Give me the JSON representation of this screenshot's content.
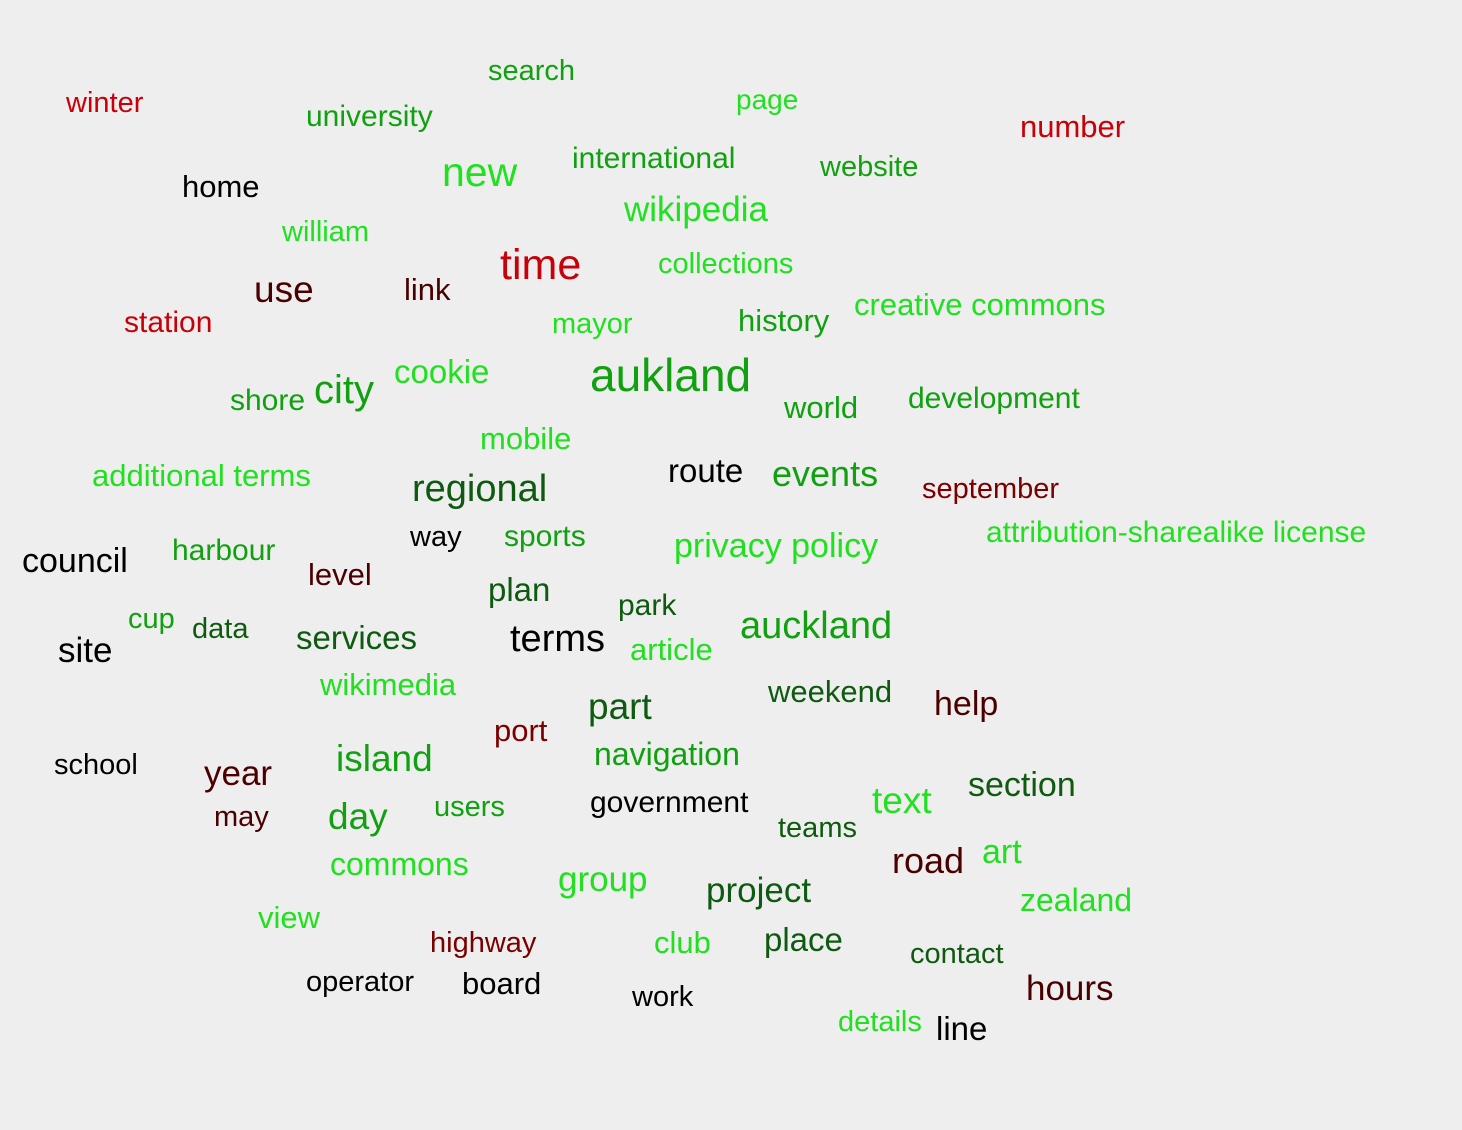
{
  "word_cloud": {
    "background": "#eeeeee",
    "palette": {
      "red": "#c8000a",
      "dark_red": "#7a0000",
      "maroon": "#4a0000",
      "black": "#000000",
      "dark_green": "#0e5a10",
      "green": "#10a010",
      "light_green": "#20e020"
    },
    "words": [
      {
        "text": "search"
      },
      {
        "text": "winter"
      },
      {
        "text": "university"
      },
      {
        "text": "page"
      },
      {
        "text": "number"
      },
      {
        "text": "international"
      },
      {
        "text": "new"
      },
      {
        "text": "website"
      },
      {
        "text": "home"
      },
      {
        "text": "wikipedia"
      },
      {
        "text": "william"
      },
      {
        "text": "time"
      },
      {
        "text": "collections"
      },
      {
        "text": "use"
      },
      {
        "text": "link"
      },
      {
        "text": "station"
      },
      {
        "text": "mayor"
      },
      {
        "text": "history"
      },
      {
        "text": "creative commons"
      },
      {
        "text": "aukland"
      },
      {
        "text": "cookie"
      },
      {
        "text": "shore"
      },
      {
        "text": "city"
      },
      {
        "text": "world"
      },
      {
        "text": "development"
      },
      {
        "text": "mobile"
      },
      {
        "text": "additional terms"
      },
      {
        "text": "route"
      },
      {
        "text": "events"
      },
      {
        "text": "regional"
      },
      {
        "text": "september"
      },
      {
        "text": "attribution-sharealike license"
      },
      {
        "text": "way"
      },
      {
        "text": "sports"
      },
      {
        "text": "privacy policy"
      },
      {
        "text": "council"
      },
      {
        "text": "harbour"
      },
      {
        "text": "level"
      },
      {
        "text": "plan"
      },
      {
        "text": "park"
      },
      {
        "text": "cup"
      },
      {
        "text": "data"
      },
      {
        "text": "services"
      },
      {
        "text": "terms"
      },
      {
        "text": "auckland"
      },
      {
        "text": "site"
      },
      {
        "text": "article"
      },
      {
        "text": "wikimedia"
      },
      {
        "text": "weekend"
      },
      {
        "text": "part"
      },
      {
        "text": "help"
      },
      {
        "text": "port"
      },
      {
        "text": "school"
      },
      {
        "text": "year"
      },
      {
        "text": "island"
      },
      {
        "text": "navigation"
      },
      {
        "text": "section"
      },
      {
        "text": "text"
      },
      {
        "text": "may"
      },
      {
        "text": "day"
      },
      {
        "text": "users"
      },
      {
        "text": "government"
      },
      {
        "text": "teams"
      },
      {
        "text": "road"
      },
      {
        "text": "art"
      },
      {
        "text": "commons"
      },
      {
        "text": "group"
      },
      {
        "text": "project"
      },
      {
        "text": "zealand"
      },
      {
        "text": "view"
      },
      {
        "text": "highway"
      },
      {
        "text": "club"
      },
      {
        "text": "place"
      },
      {
        "text": "contact"
      },
      {
        "text": "operator"
      },
      {
        "text": "board"
      },
      {
        "text": "work"
      },
      {
        "text": "hours"
      },
      {
        "text": "details"
      },
      {
        "text": "line"
      }
    ]
  }
}
